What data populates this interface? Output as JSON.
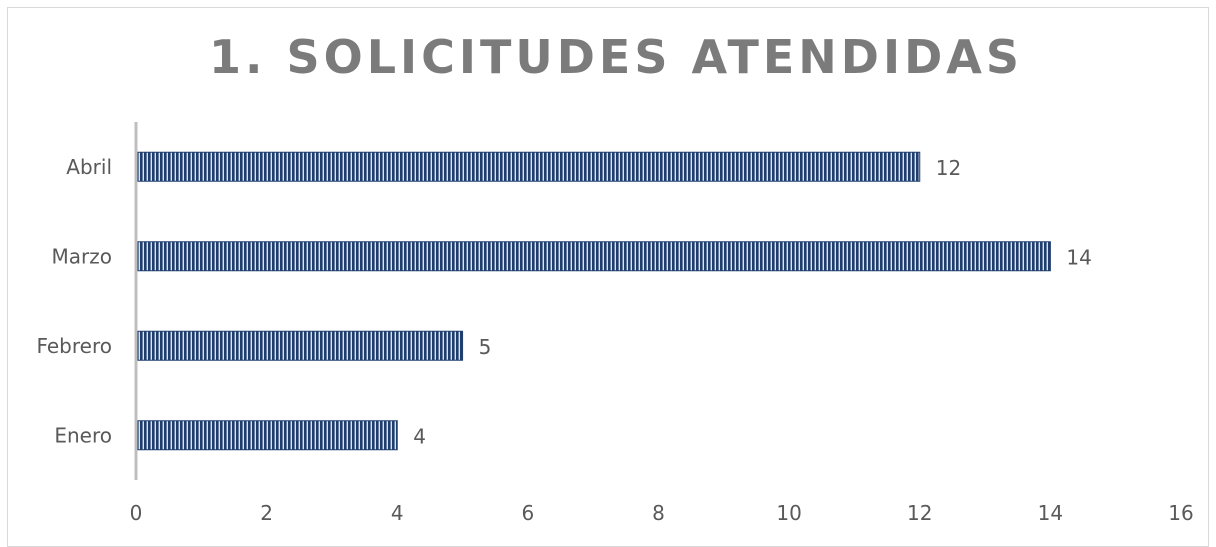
{
  "chart_data": {
    "type": "bar",
    "orientation": "horizontal",
    "title": "1. SOLICITUDES ATENDIDAS",
    "categories": [
      "Enero",
      "Febrero",
      "Marzo",
      "Abril"
    ],
    "values": [
      4,
      5,
      14,
      12
    ],
    "xlim": [
      0,
      16
    ],
    "xticks": [
      0,
      2,
      4,
      6,
      8,
      10,
      12,
      14,
      16
    ],
    "data_labels": true,
    "grid": false,
    "legend": "none",
    "bar_color": "#1f3e6e",
    "bar_pattern": "vertical-stripes",
    "axis_color": "#bfbfbf"
  }
}
